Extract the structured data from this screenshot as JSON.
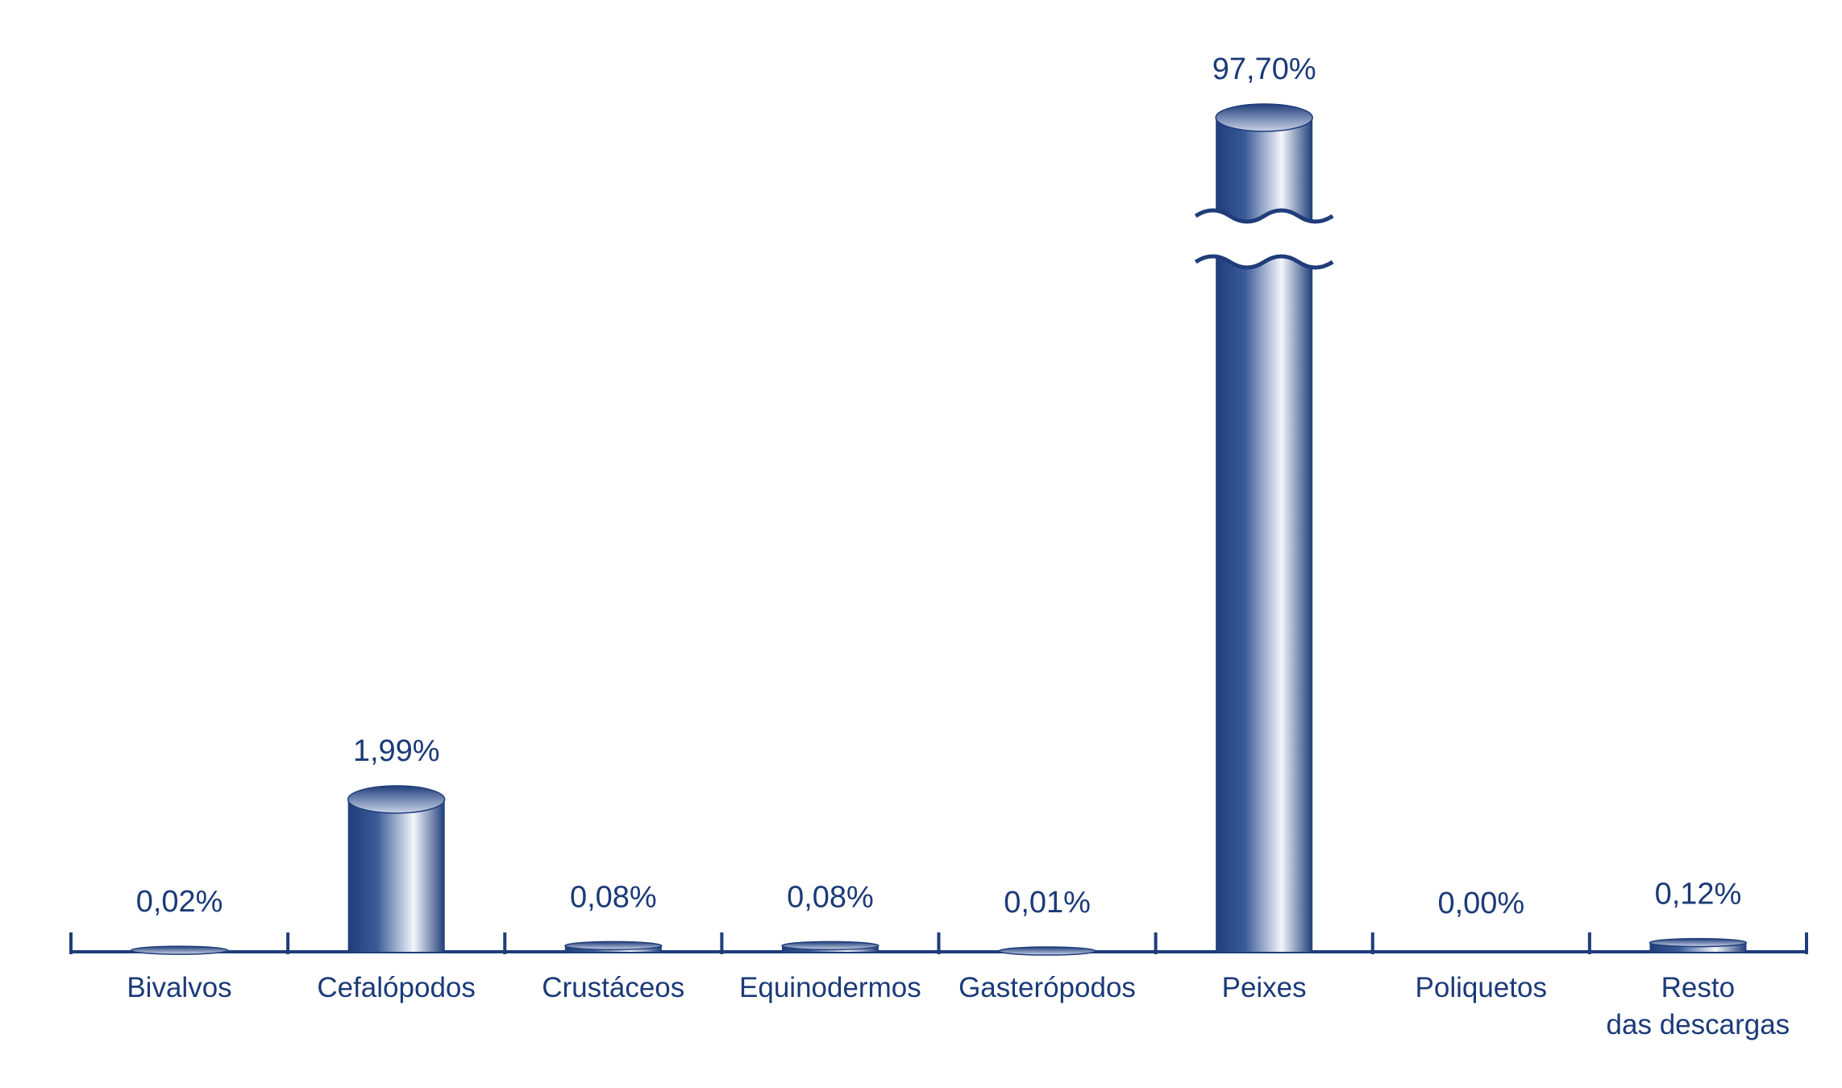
{
  "chart_data": {
    "type": "bar",
    "categories": [
      "Bivalvos",
      "Cefalópodos",
      "Crustáceos",
      "Equinodermos",
      "Gasterópodos",
      "Peixes",
      "Poliquetos",
      "Resto\ndas descargas"
    ],
    "values": [
      0.02,
      1.99,
      0.08,
      0.08,
      0.01,
      97.7,
      0.0,
      0.12
    ],
    "value_labels": [
      "0,02%",
      "1,99%",
      "0,08%",
      "0,08%",
      "0,01%",
      "97,70%",
      "0,00%",
      "0,12%"
    ],
    "color": "#1f3d7a",
    "axis_break": true
  }
}
